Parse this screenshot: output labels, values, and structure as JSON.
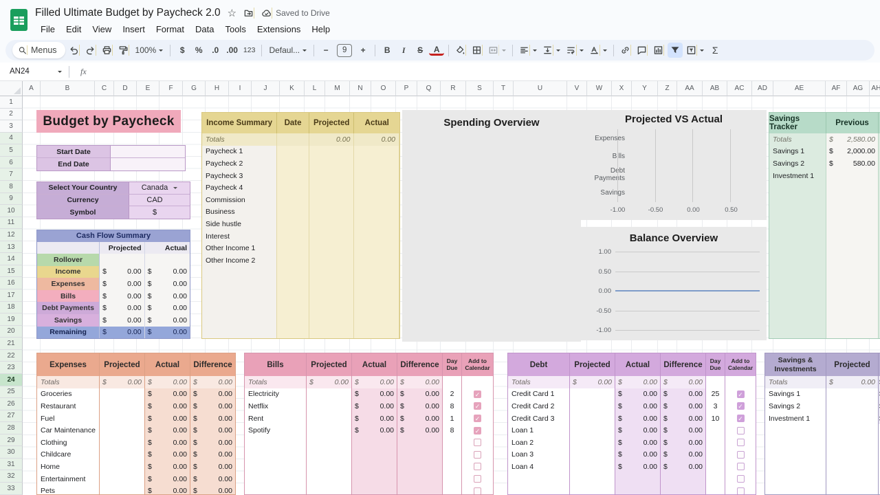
{
  "currency_symbol": "$",
  "colors": {
    "banner": "#f0a9bb",
    "cash_flow_header": "#9aa3d3",
    "income_header": "#e5d693",
    "tracker_header": "#b7dbc8",
    "expenses_header": "#eaa98e",
    "bills_header": "#e9a1b8",
    "debt_header": "#d3a9dd",
    "savings_investments_header": "#b4abd0",
    "filter_active_bg": "#d3e3fd",
    "sheets_green": "#1a9e5c"
  },
  "app": {
    "title": "Filled Ultimate Budget by Paycheck 2.0",
    "saved_status": "Saved to Drive",
    "menu_items": [
      "File",
      "Edit",
      "View",
      "Insert",
      "Format",
      "Data",
      "Tools",
      "Extensions",
      "Help"
    ]
  },
  "toolbar": {
    "menus_label": "Menus",
    "zoom_value": "100%",
    "format_currency": "$",
    "format_percent": "%",
    "decimal_decrease": ".0",
    "decimal_increase": ".00",
    "more_formats": "123",
    "font_family": "Defaul...",
    "font_decrease": "−",
    "font_size": "9",
    "font_increase": "+",
    "bold": "B",
    "italic": "I",
    "strikethrough": "S",
    "text_color": "A",
    "functions": "Σ",
    "icons": [
      "search",
      "undo",
      "redo",
      "print",
      "paint-format",
      "fill-color",
      "borders",
      "merge-cells",
      "horizontal-align",
      "vertical-align",
      "text-wrap",
      "text-rotation",
      "insert-link",
      "insert-comment",
      "insert-chart",
      "create-filter",
      "filter-views"
    ]
  },
  "formula_bar": {
    "cell_reference": "AN24",
    "fx_label": "fx"
  },
  "grid": {
    "columns": [
      "A",
      "B",
      "C",
      "D",
      "E",
      "F",
      "G",
      "H",
      "I",
      "J",
      "K",
      "L",
      "M",
      "N",
      "O",
      "P",
      "Q",
      "R",
      "S",
      "T",
      "U",
      "V",
      "W",
      "X",
      "Y",
      "Z",
      "AA",
      "AB",
      "AC",
      "AD",
      "AE",
      "AF",
      "AG",
      "AH"
    ],
    "row_count": 33,
    "selected_row": 24,
    "filter_start_row": 4
  },
  "budget_banner": {
    "title": "Budget by Paycheck"
  },
  "date_fields": [
    {
      "label": "Start Date",
      "value": ""
    },
    {
      "label": "End Date",
      "value": ""
    }
  ],
  "country": {
    "rows": [
      {
        "label": "Select Your Country",
        "value": "Canada",
        "dropdown": true
      },
      {
        "label": "Currency",
        "value": "CAD"
      },
      {
        "label": "Symbol",
        "value": "$"
      }
    ]
  },
  "cash_flow": {
    "title": "Cash Flow Summary",
    "columns": [
      "Projected",
      "Actual"
    ],
    "rows": [
      {
        "label": "Rollover",
        "projected": "",
        "actual": "",
        "theme": "cf-green"
      },
      {
        "label": "Income",
        "projected": "0.00",
        "actual": "0.00",
        "theme": "cf-yellow"
      },
      {
        "label": "Expenses",
        "projected": "0.00",
        "actual": "0.00",
        "theme": "cf-salmon"
      },
      {
        "label": "Bills",
        "projected": "0.00",
        "actual": "0.00",
        "theme": "cf-pink"
      },
      {
        "label": "Debt Payments",
        "projected": "0.00",
        "actual": "0.00",
        "theme": "cf-lilac"
      },
      {
        "label": "Savings",
        "projected": "0.00",
        "actual": "0.00",
        "theme": "cf-purple"
      },
      {
        "label": "Remaining",
        "projected": "0.00",
        "actual": "0.00",
        "theme": "cf-blue"
      }
    ]
  },
  "income_summary": {
    "headers": [
      "Income Summary",
      "Date",
      "Projected",
      "Actual"
    ],
    "totals": {
      "label": "Totals",
      "projected": "0.00",
      "actual": "0.00"
    },
    "rows": [
      "Paycheck 1",
      "Paycheck 2",
      "Paycheck 3",
      "Paycheck 4",
      "Commission",
      "Business",
      "Side hustle",
      "Interest",
      "Other Income 1",
      "Other Income 2"
    ]
  },
  "savings_tracker": {
    "title": "Savings Tracker",
    "column": "Previous",
    "rows": [
      {
        "label": "Totals",
        "value": "2,580.00",
        "total": true
      },
      {
        "label": "Savings 1",
        "value": "2,000.00"
      },
      {
        "label": "Savings 2",
        "value": "580.00"
      },
      {
        "label": "Investment 1",
        "value": ""
      }
    ]
  },
  "chart_data": [
    {
      "type": "bar",
      "title": "Spending Overview",
      "categories": [],
      "series": [],
      "note": "empty chart area"
    },
    {
      "type": "bar",
      "orientation": "horizontal",
      "title": "Projected VS Actual",
      "categories": [
        "Expenses",
        "Bills",
        "Debt Payments",
        "Savings"
      ],
      "series": [
        {
          "name": "Projected",
          "values": [
            0,
            0,
            0,
            0
          ]
        },
        {
          "name": "Actual",
          "values": [
            0,
            0,
            0,
            0
          ]
        }
      ],
      "xticks": [
        "-1.00",
        "-0.50",
        "0.00",
        "0.50"
      ],
      "xlim": [
        -1,
        0.75
      ],
      "grid": true
    },
    {
      "type": "line",
      "title": "Balance Overview",
      "yticks": [
        "1.00",
        "0.50",
        "0.00",
        "-0.50",
        "-1.00"
      ],
      "ylim": [
        -1,
        1
      ],
      "series": [
        {
          "name": "Balance",
          "values": [
            0,
            0
          ]
        }
      ],
      "grid": true
    }
  ],
  "expenses_table": {
    "title": "Expenses",
    "columns": [
      "Projected",
      "Actual",
      "Difference"
    ],
    "totals": {
      "label": "Totals",
      "projected": "0.00",
      "actual": "0.00",
      "difference": "0.00"
    },
    "items": [
      {
        "label": "Groceries",
        "actual": "0.00",
        "difference": "0.00"
      },
      {
        "label": "Restaurant",
        "actual": "0.00",
        "difference": "0.00"
      },
      {
        "label": "Fuel",
        "actual": "0.00",
        "difference": "0.00"
      },
      {
        "label": "Car Maintenance",
        "actual": "0.00",
        "difference": "0.00"
      },
      {
        "label": "Clothing",
        "actual": "0.00",
        "difference": "0.00"
      },
      {
        "label": "Childcare",
        "actual": "0.00",
        "difference": "0.00"
      },
      {
        "label": "Home",
        "actual": "0.00",
        "difference": "0.00"
      },
      {
        "label": "Entertainment",
        "actual": "0.00",
        "difference": "0.00"
      },
      {
        "label": "Pets",
        "actual": "0.00",
        "difference": "0.00"
      }
    ]
  },
  "bills_table": {
    "title": "Bills",
    "columns": [
      "Projected",
      "Actual",
      "Difference",
      "Day Due",
      "Add to Calendar"
    ],
    "totals": {
      "label": "Totals",
      "projected": "0.00",
      "actual": "0.00",
      "difference": "0.00"
    },
    "items": [
      {
        "label": "Electricity",
        "actual": "0.00",
        "difference": "0.00",
        "day": "2",
        "cal": true
      },
      {
        "label": "Netflix",
        "actual": "0.00",
        "difference": "0.00",
        "day": "8",
        "cal": true
      },
      {
        "label": "Rent",
        "actual": "0.00",
        "difference": "0.00",
        "day": "1",
        "cal": true
      },
      {
        "label": "Spotify",
        "actual": "0.00",
        "difference": "0.00",
        "day": "8",
        "cal": true
      },
      {
        "label": "",
        "actual": "",
        "difference": "",
        "day": "",
        "cal": false
      },
      {
        "label": "",
        "actual": "",
        "difference": "",
        "day": "",
        "cal": false
      },
      {
        "label": "",
        "actual": "",
        "difference": "",
        "day": "",
        "cal": false
      },
      {
        "label": "",
        "actual": "",
        "difference": "",
        "day": "",
        "cal": false
      },
      {
        "label": "",
        "actual": "",
        "difference": "",
        "day": "",
        "cal": false
      }
    ]
  },
  "debt_table": {
    "title": "Debt",
    "columns": [
      "Projected",
      "Actual",
      "Difference",
      "Day Due",
      "Add to Calendar"
    ],
    "totals": {
      "label": "Totals",
      "projected": "0.00",
      "actual": "0.00",
      "difference": "0.00"
    },
    "items": [
      {
        "label": "Credit Card 1",
        "actual": "0.00",
        "difference": "0.00",
        "day": "25",
        "cal": true
      },
      {
        "label": "Credit Card 2",
        "actual": "0.00",
        "difference": "0.00",
        "day": "3",
        "cal": true
      },
      {
        "label": "Credit Card 3",
        "actual": "0.00",
        "difference": "0.00",
        "day": "10",
        "cal": true
      },
      {
        "label": "Loan 1",
        "actual": "0.00",
        "difference": "0.00",
        "day": "",
        "cal": false
      },
      {
        "label": "Loan 2",
        "actual": "0.00",
        "difference": "0.00",
        "day": "",
        "cal": false
      },
      {
        "label": "Loan 3",
        "actual": "0.00",
        "difference": "0.00",
        "day": "",
        "cal": false
      },
      {
        "label": "Loan 4",
        "actual": "0.00",
        "difference": "0.00",
        "day": "",
        "cal": false
      },
      {
        "label": "",
        "actual": "",
        "difference": "",
        "day": "",
        "cal": false
      },
      {
        "label": "",
        "actual": "",
        "difference": "",
        "day": "",
        "cal": false
      }
    ]
  },
  "savings_investments_table": {
    "title": "Savings & Investments",
    "columns": [
      "Projected"
    ],
    "totals": {
      "label": "Totals",
      "projected": "0.00"
    },
    "items": [
      {
        "label": "Savings 1"
      },
      {
        "label": "Savings 2"
      },
      {
        "label": "Investment 1"
      }
    ]
  }
}
